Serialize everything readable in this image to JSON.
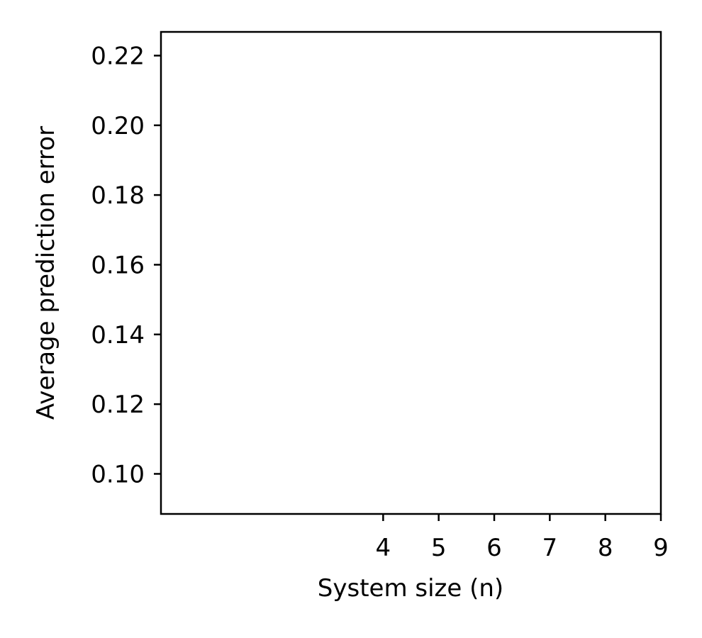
{
  "chart_data": {
    "type": "line",
    "title": "",
    "xlabel": "System size (n)",
    "ylabel": "Average prediction error",
    "xlim": [
      0,
      9
    ],
    "ylim": [
      0.0885,
      0.2268
    ],
    "xticks": [
      4,
      5,
      6,
      7,
      8,
      9
    ],
    "xtick_labels": [
      "4",
      "5",
      "6",
      "7",
      "8",
      "9"
    ],
    "yticks": [
      0.1,
      0.12,
      0.14,
      0.16,
      0.18,
      0.2,
      0.22
    ],
    "ytick_labels": [
      "0.10",
      "0.12",
      "0.14",
      "0.16",
      "0.18",
      "0.20",
      "0.22"
    ],
    "series": [],
    "grid": false,
    "legend": "none"
  }
}
